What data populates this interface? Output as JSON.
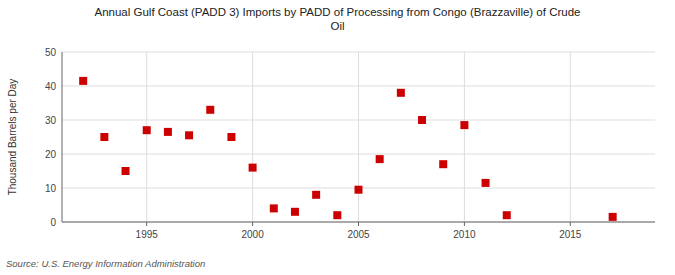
{
  "chart_data": {
    "type": "scatter",
    "title": "Annual Gulf Coast (PADD 3) Imports by PADD of Processing from Congo (Brazzaville) of Crude\nOil",
    "ylabel": "Thousand Barrels per Day",
    "source": "Source: U.S. Energy Information Administration",
    "color": "#cc0000",
    "marker": "square",
    "grid": true,
    "xlim": [
      1991,
      2019
    ],
    "ylim": [
      0,
      50
    ],
    "xticks": [
      1995,
      2000,
      2005,
      2010,
      2015
    ],
    "yticks": [
      0,
      10,
      20,
      30,
      40,
      50
    ],
    "x": [
      1992,
      1993,
      1994,
      1995,
      1996,
      1997,
      1998,
      1999,
      2000,
      2001,
      2002,
      2003,
      2004,
      2005,
      2006,
      2007,
      2008,
      2009,
      2010,
      2011,
      2012,
      2017
    ],
    "values": [
      41.5,
      25.0,
      15.0,
      27.0,
      26.5,
      25.5,
      33.0,
      25.0,
      16.0,
      4.0,
      3.0,
      8.0,
      2.0,
      9.5,
      18.5,
      38.0,
      30.0,
      17.0,
      28.5,
      11.5,
      2.0,
      1.5
    ]
  }
}
